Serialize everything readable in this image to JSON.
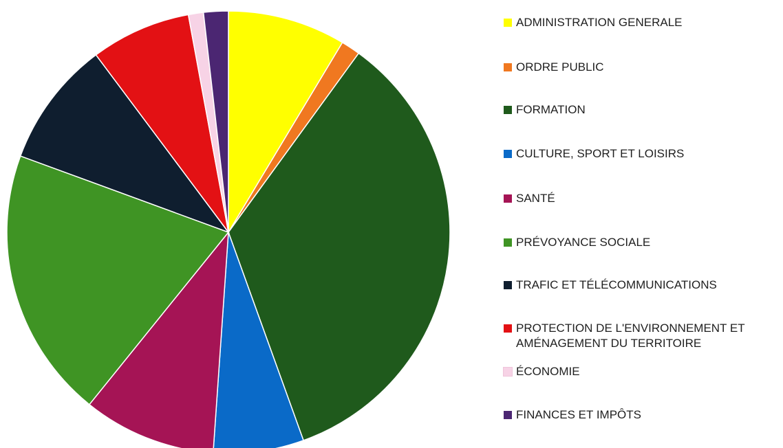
{
  "chart_data": {
    "type": "pie",
    "title": "",
    "start_angle_deg": 0,
    "direction": "clockwise",
    "legend_position": "right",
    "slices": [
      {
        "label": "ADMINISTRATION GENERALE",
        "value": 8.6,
        "color": "#ffff00"
      },
      {
        "label": "ORDRE PUBLIC",
        "value": 1.4,
        "color": "#f07820"
      },
      {
        "label": "FORMATION",
        "value": 34.5,
        "color": "#1f5a1c"
      },
      {
        "label": "CULTURE, SPORT ET LOISIRS",
        "value": 6.6,
        "color": "#0a6ac8"
      },
      {
        "label": "SANTÉ",
        "value": 9.7,
        "color": "#a51455"
      },
      {
        "label": "PRÉVOYANCE SOCIALE",
        "value": 19.8,
        "color": "#3f9424"
      },
      {
        "label": "TRAFIC ET TÉLÉCOMMUNICATIONS",
        "value": 9.2,
        "color": "#0f1e2f"
      },
      {
        "label": "PROTECTION DE L'ENVIRONNEMENT ET\nAMÉNAGEMENT DU TERRITOIRE",
        "value": 7.3,
        "color": "#e31114"
      },
      {
        "label": "ÉCONOMIE",
        "value": 1.1,
        "color": "#f7d3e6"
      },
      {
        "label": "FINANCES ET IMPÔTS",
        "value": 1.8,
        "color": "#4b2672"
      }
    ]
  }
}
